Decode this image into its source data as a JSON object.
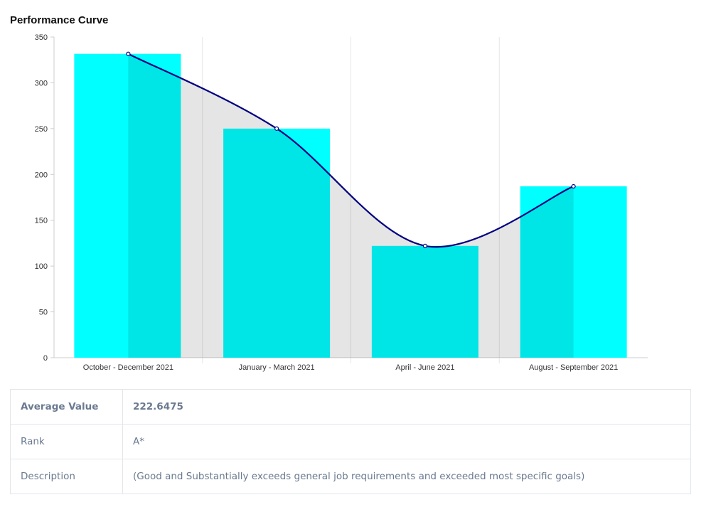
{
  "title": "Performance Curve",
  "chart_data": {
    "type": "bar",
    "title": "Performance Curve",
    "categories": [
      "October - December 2021",
      "January - March 2021",
      "April - June 2021",
      "August - September 2021"
    ],
    "values": [
      331.59,
      250,
      122,
      187
    ],
    "curve": [
      331.59,
      250,
      122,
      187
    ],
    "ylim": [
      0,
      350
    ],
    "yticks": [
      "0",
      "50",
      "100",
      "150",
      "200",
      "250",
      "300",
      "350"
    ],
    "xlabel": "",
    "ylabel": "",
    "colors": {
      "bar": "#00ffff",
      "bar_overlap": "#00e5e5",
      "area": "#e5e5e5",
      "line": "#000080"
    }
  },
  "table": {
    "rows": [
      {
        "label": "Average Value",
        "value": "222.6475"
      },
      {
        "label": "Rank",
        "value": "A*"
      },
      {
        "label": "Description",
        "value": "(Good and Substantially exceeds general job requirements and exceeded most specific goals)"
      }
    ]
  }
}
